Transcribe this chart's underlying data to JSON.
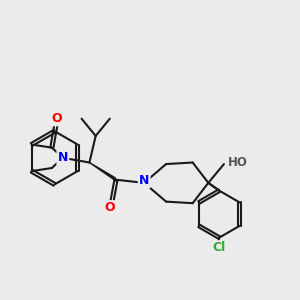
{
  "background_color": "#ebebeb",
  "bond_color": "#1a1a1a",
  "atom_colors": {
    "O": "#ff0000",
    "N": "#0000ff",
    "Cl": "#33aa33",
    "H": "#555555",
    "C": "#1a1a1a"
  },
  "title": "",
  "figsize": [
    3.0,
    3.0
  ],
  "dpi": 100
}
